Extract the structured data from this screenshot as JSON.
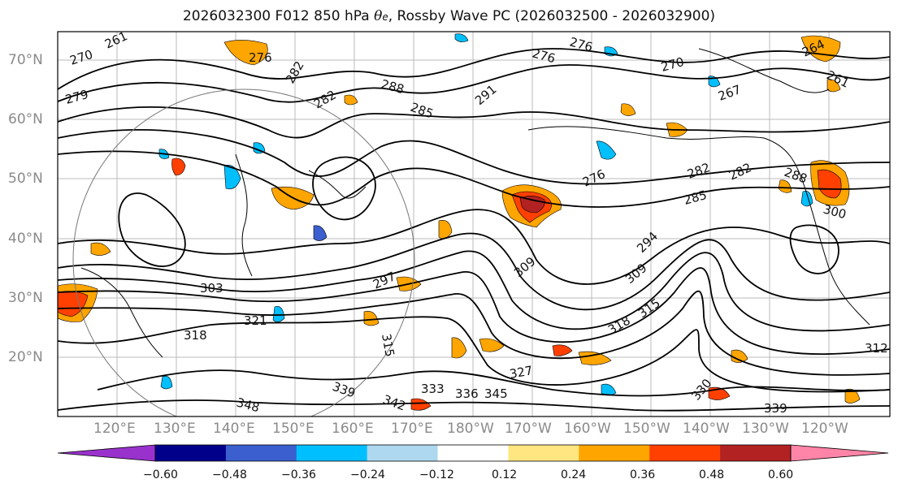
{
  "title": {
    "prefix": "2026032300 F012 850 hPa ",
    "theta": "θ",
    "theta_sub": "e",
    "suffix": ", Rossby Wave PC (2026032500 - 2026032900)"
  },
  "lat_labels": [
    "70°N",
    "60°N",
    "50°N",
    "40°N",
    "30°N",
    "20°N"
  ],
  "lon_labels": [
    "120°E",
    "130°E",
    "140°E",
    "150°E",
    "160°E",
    "170°E",
    "180°W",
    "170°W",
    "160°W",
    "150°W",
    "140°W",
    "130°W",
    "120°W"
  ],
  "contour_labels": [
    "270",
    "261",
    "276",
    "276",
    "276",
    "270",
    "264",
    "261",
    "267",
    "279",
    "282",
    "288",
    "285",
    "291",
    "282",
    "276",
    "282",
    "282",
    "288",
    "285",
    "300",
    "297",
    "303",
    "309",
    "294",
    "309",
    "315",
    "321",
    "318",
    "315",
    "327",
    "333",
    "339",
    "342",
    "348",
    "345",
    "330",
    "339",
    "312",
    "318",
    "336"
  ],
  "colorbar": {
    "colors": [
      "#9932cc",
      "#00008b",
      "#3b5fcf",
      "#00bfff",
      "#add8f0",
      "#ffffff",
      "#ffe680",
      "#ffa500",
      "#ff4000",
      "#b22222",
      "#ff85a8"
    ],
    "ticks": [
      "−0.60",
      "−0.48",
      "−0.36",
      "−0.24",
      "−0.12",
      "0.12",
      "0.24",
      "0.36",
      "0.48",
      "0.60"
    ]
  }
}
